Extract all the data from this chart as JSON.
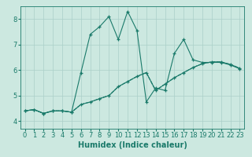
{
  "xlabel": "Humidex (Indice chaleur)",
  "ylabel": "",
  "bg_color": "#cce8e0",
  "line_color": "#1a7a6a",
  "xlim": [
    -0.5,
    23.5
  ],
  "ylim": [
    3.7,
    8.5
  ],
  "xticks": [
    0,
    1,
    2,
    3,
    4,
    5,
    6,
    7,
    8,
    9,
    10,
    11,
    12,
    13,
    14,
    15,
    16,
    17,
    18,
    19,
    20,
    21,
    22,
    23
  ],
  "yticks": [
    4,
    5,
    6,
    7,
    8
  ],
  "series": [
    {
      "x": [
        0,
        1,
        2,
        3,
        4,
        5,
        6,
        7,
        8,
        9,
        10,
        11,
        12,
        13,
        14,
        15,
        16,
        17,
        18,
        19,
        20,
        21,
        22,
        23
      ],
      "y": [
        4.4,
        4.45,
        4.3,
        4.4,
        4.4,
        4.35,
        5.9,
        7.4,
        7.7,
        8.1,
        7.2,
        8.3,
        7.55,
        4.75,
        5.3,
        5.2,
        6.65,
        7.2,
        6.4,
        6.3,
        6.3,
        6.3,
        6.2,
        6.05
      ],
      "style": "-",
      "marker": "+"
    },
    {
      "x": [
        0,
        1,
        2,
        3,
        4,
        5,
        6,
        7,
        8,
        9,
        10,
        11,
        12,
        13,
        14,
        15,
        16,
        17,
        18,
        19,
        20,
        21,
        22,
        23
      ],
      "y": [
        4.4,
        4.45,
        4.3,
        4.4,
        4.4,
        4.35,
        4.65,
        4.75,
        4.88,
        5.0,
        5.35,
        5.55,
        5.75,
        5.9,
        5.2,
        5.45,
        5.7,
        5.9,
        6.1,
        6.25,
        6.32,
        6.32,
        6.22,
        6.07
      ],
      "style": "-",
      "marker": "+"
    },
    {
      "x": [
        0,
        1,
        2,
        3,
        4,
        5,
        6,
        7,
        8,
        9,
        10,
        11,
        12,
        13,
        14,
        15,
        16,
        17,
        18,
        19,
        20,
        21,
        22,
        23
      ],
      "y": [
        4.4,
        4.45,
        4.3,
        4.4,
        4.4,
        4.35,
        4.65,
        4.75,
        4.88,
        5.0,
        5.35,
        5.55,
        5.75,
        5.9,
        5.2,
        5.45,
        5.7,
        5.9,
        6.1,
        6.25,
        6.32,
        6.32,
        6.22,
        6.07
      ],
      "style": "--",
      "marker": null
    },
    {
      "x": [
        0,
        1,
        2,
        3,
        4,
        5,
        6,
        7,
        8,
        9,
        10,
        11,
        12,
        13,
        14,
        15,
        16,
        17,
        18,
        19,
        20,
        21,
        22,
        23
      ],
      "y": [
        4.4,
        4.45,
        4.3,
        4.4,
        4.4,
        4.35,
        4.65,
        4.75,
        4.88,
        5.0,
        5.35,
        5.55,
        5.75,
        5.9,
        5.2,
        5.45,
        5.7,
        5.9,
        6.1,
        6.25,
        6.32,
        6.32,
        6.22,
        6.07
      ],
      "style": ":",
      "marker": null
    }
  ],
  "grid_color": "#aacfc8",
  "tick_labelsize": 6,
  "xlabel_fontsize": 7
}
